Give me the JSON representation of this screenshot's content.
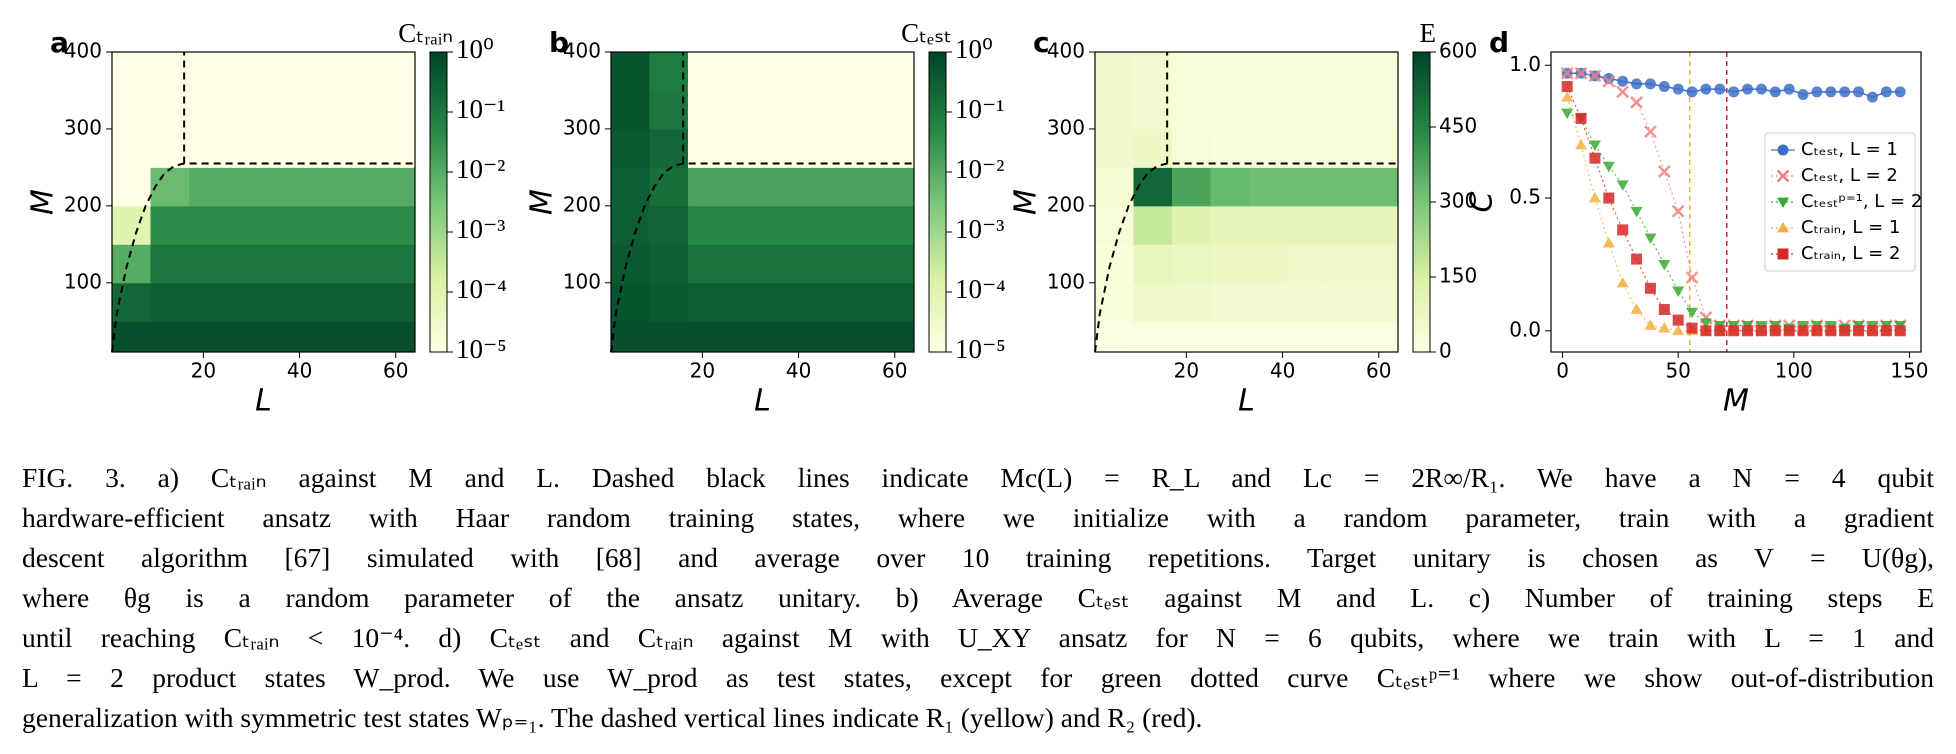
{
  "chart_data": [
    {
      "type": "heatmap",
      "panel": "a",
      "xlabel": "L",
      "ylabel": "M",
      "colorbar_label": "Cₜᵣₐᵢₙ",
      "log": true,
      "xlim": [
        1,
        64
      ],
      "ylim": [
        10,
        400
      ],
      "xticks": [
        20,
        40,
        60
      ],
      "yticks": [
        100,
        200,
        300,
        400
      ],
      "x_edges": [
        1,
        9,
        17,
        25,
        33,
        41,
        49,
        57,
        64
      ],
      "y_edges": [
        10,
        50,
        100,
        150,
        200,
        250,
        300,
        350,
        400
      ],
      "clim": [
        1e-05,
        1
      ],
      "cticks": [
        {
          "value": 1,
          "label": "10⁰"
        },
        {
          "value": 0.1,
          "label": "10⁻¹"
        },
        {
          "value": 0.01,
          "label": "10⁻²"
        },
        {
          "value": 0.001,
          "label": "10⁻³"
        },
        {
          "value": 0.0001,
          "label": "10⁻⁴"
        },
        {
          "value": 1e-05,
          "label": "10⁻⁵"
        }
      ],
      "values": [
        [
          0.6,
          0.6,
          0.6,
          0.6,
          0.6,
          0.6,
          0.6,
          0.6
        ],
        [
          0.2,
          0.3,
          0.3,
          0.3,
          0.3,
          0.3,
          0.3,
          0.3
        ],
        [
          0.01,
          0.1,
          0.1,
          0.1,
          0.1,
          0.1,
          0.1,
          0.1
        ],
        [
          0.0001,
          0.04,
          0.04,
          0.04,
          0.04,
          0.04,
          0.04,
          0.04
        ],
        [
          1e-05,
          0.005,
          0.01,
          0.01,
          0.01,
          0.01,
          0.01,
          0.01
        ],
        [
          1e-05,
          1e-05,
          1e-05,
          1e-05,
          1e-05,
          1e-05,
          1e-05,
          1e-05
        ],
        [
          1e-05,
          1e-05,
          1e-05,
          1e-05,
          1e-05,
          1e-05,
          1e-05,
          1e-05
        ],
        [
          1e-05,
          1e-05,
          1e-05,
          1e-05,
          1e-05,
          1e-05,
          1e-05,
          1e-05
        ]
      ],
      "boundary": [
        {
          "x": [
            1,
            2,
            4,
            6,
            8,
            10,
            12,
            14,
            16,
            64
          ],
          "y": [
            10,
            60,
            120,
            165,
            200,
            225,
            243,
            252,
            255,
            255
          ]
        },
        {
          "x": [
            16,
            16
          ],
          "y": [
            255,
            400
          ]
        }
      ]
    },
    {
      "type": "heatmap",
      "panel": "b",
      "xlabel": "L",
      "ylabel": "M",
      "colorbar_label": "Cₜₑₛₜ",
      "log": true,
      "xlim": [
        1,
        64
      ],
      "ylim": [
        10,
        400
      ],
      "xticks": [
        20,
        40,
        60
      ],
      "yticks": [
        100,
        200,
        300,
        400
      ],
      "x_edges": [
        1,
        9,
        17,
        25,
        33,
        41,
        49,
        57,
        64
      ],
      "y_edges": [
        10,
        50,
        100,
        150,
        200,
        250,
        300,
        350,
        400
      ],
      "clim": [
        1e-05,
        1
      ],
      "cticks": [
        {
          "value": 1,
          "label": "10⁰"
        },
        {
          "value": 0.1,
          "label": "10⁻¹"
        },
        {
          "value": 0.01,
          "label": "10⁻²"
        },
        {
          "value": 0.001,
          "label": "10⁻³"
        },
        {
          "value": 0.0001,
          "label": "10⁻⁴"
        },
        {
          "value": 1e-05,
          "label": "10⁻⁵"
        }
      ],
      "values": [
        [
          0.6,
          0.6,
          0.6,
          0.6,
          0.6,
          0.6,
          0.6,
          0.6
        ],
        [
          0.5,
          0.4,
          0.3,
          0.3,
          0.3,
          0.3,
          0.3,
          0.3
        ],
        [
          0.4,
          0.3,
          0.12,
          0.12,
          0.12,
          0.12,
          0.12,
          0.12
        ],
        [
          0.3,
          0.25,
          0.05,
          0.05,
          0.05,
          0.05,
          0.05,
          0.05
        ],
        [
          0.3,
          0.15,
          0.015,
          0.015,
          0.015,
          0.015,
          0.015,
          0.015
        ],
        [
          0.4,
          0.2,
          1e-05,
          1e-05,
          1e-05,
          1e-05,
          1e-05,
          1e-05
        ],
        [
          0.5,
          0.1,
          1e-05,
          1e-05,
          1e-05,
          1e-05,
          1e-05,
          1e-05
        ],
        [
          0.5,
          0.08,
          1e-05,
          1e-05,
          1e-05,
          1e-05,
          1e-05,
          1e-05
        ]
      ],
      "boundary": [
        {
          "x": [
            1,
            2,
            4,
            6,
            8,
            10,
            12,
            14,
            16,
            64
          ],
          "y": [
            10,
            60,
            120,
            165,
            200,
            225,
            243,
            252,
            255,
            255
          ]
        },
        {
          "x": [
            16,
            16
          ],
          "y": [
            255,
            400
          ]
        }
      ]
    },
    {
      "type": "heatmap",
      "panel": "c",
      "xlabel": "L",
      "ylabel": "M",
      "colorbar_label": "E",
      "log": false,
      "xlim": [
        1,
        64
      ],
      "ylim": [
        10,
        400
      ],
      "xticks": [
        20,
        40,
        60
      ],
      "yticks": [
        100,
        200,
        300,
        400
      ],
      "x_edges": [
        1,
        9,
        17,
        25,
        33,
        41,
        49,
        57,
        64
      ],
      "y_edges": [
        10,
        50,
        100,
        150,
        200,
        250,
        300,
        350,
        400
      ],
      "clim": [
        0,
        600
      ],
      "cticks": [
        0,
        150,
        300,
        450,
        600
      ],
      "values": [
        [
          10,
          15,
          15,
          15,
          15,
          15,
          15,
          15
        ],
        [
          25,
          60,
          60,
          50,
          50,
          50,
          50,
          50
        ],
        [
          20,
          90,
          80,
          70,
          70,
          60,
          60,
          60
        ],
        [
          30,
          180,
          120,
          100,
          100,
          100,
          100,
          100
        ],
        [
          40,
          520,
          380,
          330,
          320,
          320,
          320,
          320
        ],
        [
          60,
          70,
          30,
          25,
          25,
          25,
          25,
          25
        ],
        [
          60,
          50,
          25,
          20,
          20,
          20,
          20,
          20
        ],
        [
          60,
          50,
          25,
          20,
          20,
          20,
          20,
          20
        ]
      ],
      "boundary": [
        {
          "x": [
            1,
            2,
            4,
            6,
            8,
            10,
            12,
            14,
            16,
            64
          ],
          "y": [
            10,
            60,
            120,
            165,
            200,
            225,
            243,
            252,
            255,
            255
          ]
        },
        {
          "x": [
            16,
            16
          ],
          "y": [
            255,
            400
          ]
        }
      ]
    },
    {
      "type": "line",
      "panel": "d",
      "xlabel": "M",
      "ylabel": "C",
      "legend": "center right",
      "xlim": [
        -5,
        155
      ],
      "ylim": [
        -0.08,
        1.05
      ],
      "xticks": [
        0,
        50,
        100,
        150
      ],
      "yticks": [
        {
          "value": 0,
          "label": "0.0"
        },
        {
          "value": 0.5,
          "label": "0.5"
        },
        {
          "value": 1,
          "label": "1.0"
        }
      ],
      "x": [
        2,
        8,
        14,
        20,
        26,
        32,
        38,
        44,
        50,
        56,
        62,
        68,
        74,
        80,
        86,
        92,
        98,
        104,
        110,
        116,
        122,
        128,
        134,
        140,
        146
      ],
      "vlines": [
        {
          "x": 55,
          "color": "#f5b041"
        },
        {
          "x": 71,
          "color": "#d62728"
        }
      ],
      "series": [
        {
          "name": "Cₜₑₛₜ,  L = 1",
          "color": "#3d6fc6",
          "marker": "circle",
          "linestyle": "solid",
          "values": [
            0.97,
            0.97,
            0.96,
            0.95,
            0.94,
            0.93,
            0.93,
            0.92,
            0.91,
            0.9,
            0.91,
            0.91,
            0.9,
            0.91,
            0.91,
            0.9,
            0.91,
            0.89,
            0.9,
            0.9,
            0.9,
            0.9,
            0.88,
            0.9,
            0.9
          ]
        },
        {
          "name": "Cₜₑₛₜ,  L = 2",
          "color": "#f08080",
          "marker": "x",
          "linestyle": "dotted",
          "values": [
            0.97,
            0.97,
            0.96,
            0.94,
            0.9,
            0.86,
            0.75,
            0.6,
            0.45,
            0.2,
            0.05,
            0.02,
            0.02,
            0.02,
            0.01,
            0.02,
            0.02,
            0.01,
            0.02,
            0.01,
            0.02,
            0.02,
            0.01,
            0.02,
            0.02
          ]
        },
        {
          "name": "Cₜₑₛₜᵖ⁼¹, L = 2",
          "color": "#3aaa35",
          "marker": "tri-down",
          "linestyle": "dotted",
          "values": [
            0.82,
            0.8,
            0.7,
            0.62,
            0.55,
            0.45,
            0.35,
            0.25,
            0.15,
            0.07,
            0.03,
            0.02,
            0.02,
            0.02,
            0.02,
            0.02,
            0.01,
            0.02,
            0.02,
            0.02,
            0.01,
            0.02,
            0.02,
            0.02,
            0.02
          ]
        },
        {
          "name": "Cₜᵣₐᵢₙ, L = 1",
          "color": "#f5b041",
          "marker": "tri-up",
          "linestyle": "dotted",
          "values": [
            0.88,
            0.7,
            0.5,
            0.33,
            0.18,
            0.08,
            0.02,
            0.01,
            0,
            0,
            0,
            0,
            0,
            0,
            0,
            0,
            0,
            0,
            0,
            0,
            0,
            0,
            0,
            0,
            0
          ]
        },
        {
          "name": "Cₜᵣₐᵢₙ, L = 2",
          "color": "#d62728",
          "marker": "square",
          "linestyle": "dotted",
          "values": [
            0.92,
            0.8,
            0.65,
            0.5,
            0.38,
            0.27,
            0.16,
            0.08,
            0.04,
            0.01,
            0,
            0,
            0,
            0,
            0,
            0,
            0,
            0,
            0,
            0,
            0,
            0,
            0,
            0,
            0
          ]
        }
      ]
    }
  ],
  "caption": [
    "FIG. 3. a) Cₜᵣₐᵢₙ against M and L. Dashed black lines indicate Mc(L) = R_L and Lc = 2R∞/R₁. We have a N = 4 qubit",
    "hardware-efficient ansatz with Haar random training states, where we initialize with a random parameter, train with a gradient",
    "descent algorithm [67] simulated with [68] and average over 10 training repetitions. Target unitary is chosen as V = U(θg),",
    "where θg is a random parameter of the ansatz unitary. b) Average Cₜₑₛₜ against M and L. c) Number of training steps E",
    "until reaching Cₜᵣₐᵢₙ < 10⁻⁴. d) Cₜₑₛₜ and Cₜᵣₐᵢₙ against M with U_XY ansatz for N = 6 qubits, where we train with L = 1 and",
    "L = 2 product states W_prod. We use W_prod as test states, except for green dotted curve Cₜₑₛₜᵖ⁼¹ where we show out-of-distribution",
    "generalization with symmetric test states Wₚ₌₁. The dashed vertical lines indicate R₁ (yellow) and R₂ (red)."
  ]
}
